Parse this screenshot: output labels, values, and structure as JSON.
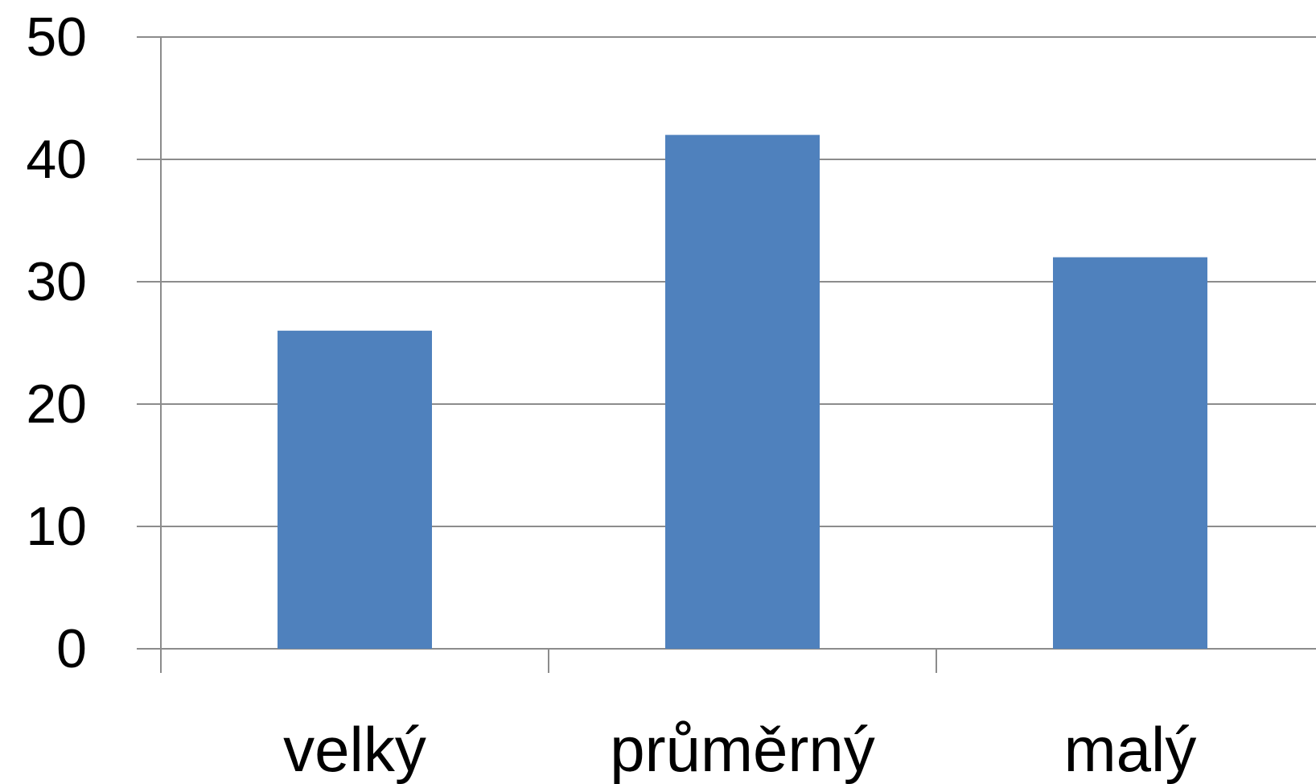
{
  "chart_data": {
    "type": "bar",
    "categories": [
      "velký",
      "průměrný",
      "malý"
    ],
    "values": [
      26,
      42,
      32
    ],
    "ylim": [
      0,
      50
    ],
    "yticks": [
      0,
      10,
      20,
      30,
      40,
      50
    ],
    "grid": true,
    "legend": "none",
    "colors": {
      "bar": "#4f81bd",
      "grid": "#8c8c8c",
      "axis": "#8c8c8c",
      "text": "#000000"
    }
  }
}
